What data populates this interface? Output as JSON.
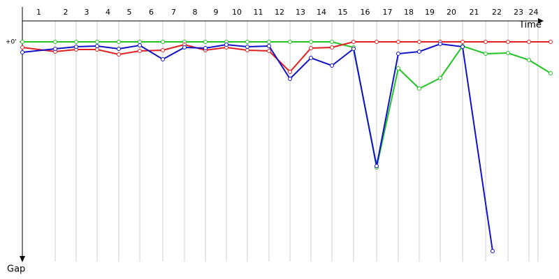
{
  "chart_data": {
    "type": "line",
    "x_label": "Time",
    "y_label": "Gap",
    "laps": [
      "1",
      "2",
      "3",
      "4",
      "5",
      "6",
      "7",
      "8",
      "9",
      "10",
      "11",
      "12",
      "13",
      "14",
      "15",
      "16",
      "17",
      "18",
      "19",
      "20",
      "21",
      "22",
      "23",
      "24"
    ],
    "lap_ends": [
      0,
      47,
      77,
      107,
      138,
      168,
      201,
      232,
      262,
      292,
      322,
      353,
      383,
      413,
      443,
      474,
      507,
      538,
      568,
      598,
      630,
      663,
      695,
      725,
      738
    ],
    "xlim": [
      0,
      760
    ],
    "ylim": [
      0,
      310
    ],
    "yticks": [
      {
        "value": 0,
        "label": "+0'"
      }
    ],
    "series": [
      {
        "color": "#22c322",
        "x": [
          0,
          47,
          77,
          107,
          138,
          168,
          201,
          232,
          262,
          292,
          322,
          353,
          383,
          413,
          443,
          474,
          507,
          538,
          568,
          598,
          630,
          663,
          695,
          725,
          756
        ],
        "values": [
          0,
          0,
          0,
          0,
          0,
          0,
          0,
          0,
          0,
          0,
          0,
          0,
          0,
          0,
          0,
          8,
          180,
          38,
          67,
          52,
          6,
          17,
          16,
          26,
          45
        ]
      },
      {
        "color": "#e02020",
        "x": [
          0,
          47,
          77,
          107,
          138,
          168,
          201,
          232,
          262,
          292,
          322,
          353,
          383,
          413,
          443,
          474,
          507,
          538,
          568,
          598,
          630,
          663,
          695,
          725,
          756
        ],
        "values": [
          8,
          14,
          11,
          11,
          18,
          13,
          12,
          4,
          12,
          8,
          12,
          13,
          43,
          9,
          8,
          0,
          0,
          0,
          0,
          0,
          0,
          0,
          0,
          0,
          0
        ]
      },
      {
        "color": "#1212c8",
        "x": [
          0,
          47,
          77,
          107,
          138,
          168,
          201,
          232,
          262,
          292,
          322,
          353,
          383,
          413,
          443,
          474,
          507,
          538,
          568,
          598,
          630,
          673
        ],
        "values": [
          15,
          10,
          7,
          6,
          10,
          5,
          25,
          8,
          9,
          4,
          7,
          6,
          53,
          23,
          34,
          10,
          178,
          17,
          14,
          3,
          7,
          300
        ]
      }
    ]
  }
}
